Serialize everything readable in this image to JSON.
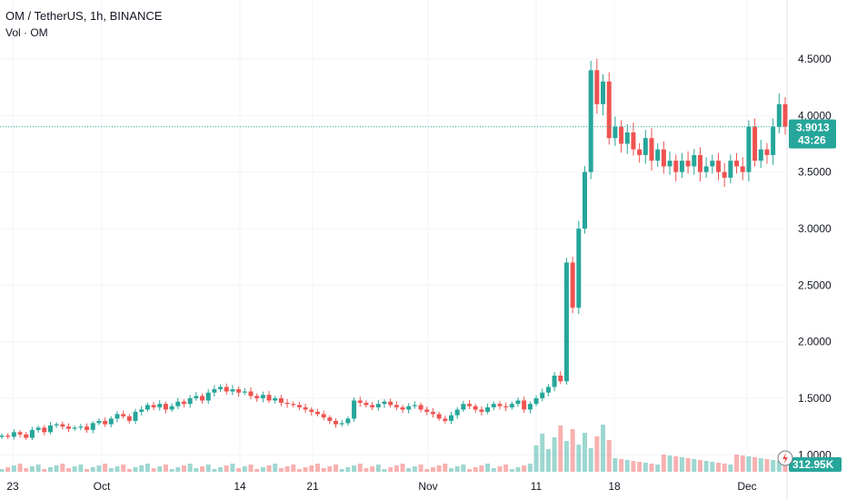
{
  "header": {
    "symbol_line": "OM / TetherUS, 1h, BINANCE",
    "volume_label": "Vol · OM"
  },
  "colors": {
    "up": "#26a69a",
    "down": "#ef5350",
    "grid": "#f0f3fa",
    "price_line": "#26a69a",
    "badge": "#26a69a",
    "axis_text": "#131722"
  },
  "price_badge": {
    "price": "3.9013",
    "countdown": "43:26"
  },
  "volume_badge": {
    "value": "312.95K"
  },
  "icons": {
    "volume_marker": "lightning-icon"
  },
  "chart_data": {
    "type": "candlestick",
    "title": "OM / TetherUS, 1h, BINANCE",
    "y_ticks": [
      "4.5000",
      "4.0000",
      "3.5000",
      "3.0000",
      "2.5000",
      "2.0000",
      "1.5000",
      "1.0000"
    ],
    "x_ticks": [
      "23",
      "Oct",
      "14",
      "21",
      "Nov",
      "11",
      "18",
      "Dec"
    ],
    "ylim": [
      0.85,
      4.7
    ],
    "last_price": 3.9013,
    "grid": true,
    "price_series": {
      "note_points": "approximate close prices over time, in index order",
      "values": [
        1.17,
        1.16,
        1.2,
        1.18,
        1.15,
        1.22,
        1.24,
        1.2,
        1.26,
        1.27,
        1.25,
        1.23,
        1.24,
        1.25,
        1.22,
        1.28,
        1.3,
        1.27,
        1.32,
        1.36,
        1.34,
        1.3,
        1.38,
        1.4,
        1.44,
        1.42,
        1.45,
        1.4,
        1.43,
        1.47,
        1.45,
        1.5,
        1.52,
        1.48,
        1.55,
        1.58,
        1.6,
        1.56,
        1.58,
        1.55,
        1.56,
        1.52,
        1.5,
        1.53,
        1.48,
        1.5,
        1.46,
        1.45,
        1.44,
        1.42,
        1.4,
        1.38,
        1.36,
        1.33,
        1.3,
        1.27,
        1.28,
        1.32,
        1.48,
        1.46,
        1.44,
        1.42,
        1.45,
        1.47,
        1.44,
        1.42,
        1.4,
        1.43,
        1.44,
        1.4,
        1.38,
        1.36,
        1.32,
        1.3,
        1.35,
        1.4,
        1.45,
        1.43,
        1.4,
        1.38,
        1.42,
        1.45,
        1.43,
        1.42,
        1.45,
        1.48,
        1.4,
        1.45,
        1.5,
        1.55,
        1.6,
        1.7,
        1.65,
        2.7,
        2.3,
        3.0,
        3.5,
        4.4,
        4.1,
        4.3,
        3.8,
        3.9,
        3.75,
        3.85,
        3.7,
        3.65,
        3.8,
        3.6,
        3.7,
        3.55,
        3.6,
        3.5,
        3.6,
        3.55,
        3.65,
        3.5,
        3.55,
        3.6,
        3.5,
        3.45,
        3.6,
        3.55,
        3.5,
        3.9,
        3.6,
        3.7,
        3.65,
        3.9,
        4.1,
        3.9013
      ]
    }
  }
}
